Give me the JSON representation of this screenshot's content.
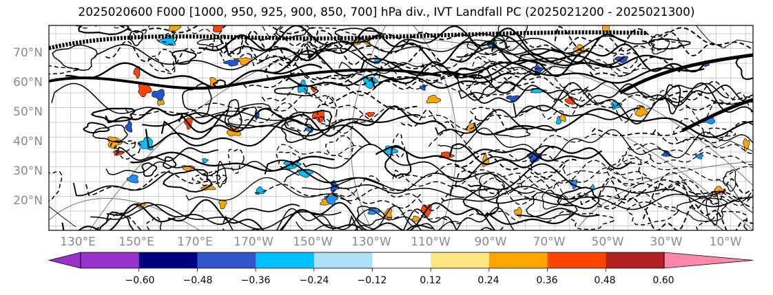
{
  "title": "2025020600 F000 [1000, 950, 925, 900, 850, 700] hPa div., IVT Landfall PC (2025021200 - 2025021300)",
  "lat_labels": [
    "70°N",
    "60°N",
    "50°N",
    "40°N",
    "30°N",
    "20°N"
  ],
  "lon_labels": [
    "130°E",
    "150°E",
    "170°E",
    "170°W",
    "150°W",
    "130°W",
    "110°W",
    "90°W",
    "70°W",
    "50°W",
    "30°W",
    "10°W"
  ],
  "colorbar": {
    "ticks": [
      "−0.60",
      "−0.48",
      "−0.36",
      "−0.24",
      "−0.12",
      "0.12",
      "0.24",
      "0.36",
      "0.48",
      "0.60"
    ],
    "colors": [
      "#9933cc",
      "#000080",
      "#3355cc",
      "#00bfff",
      "#aee0f8",
      "#ffffff",
      "#ffe680",
      "#ffa500",
      "#ff4500",
      "#b22222",
      "#ff88aa",
      "#ff88aa"
    ],
    "under_color": "#9933cc",
    "over_color": "#ff88aa"
  },
  "shading_colors": {
    "neg_dark": "#2255cc",
    "neg_mid": "#1e90ff",
    "neg_light": "#00bfff",
    "pos_light": "#ffa500",
    "pos_dark": "#ff4500"
  }
}
